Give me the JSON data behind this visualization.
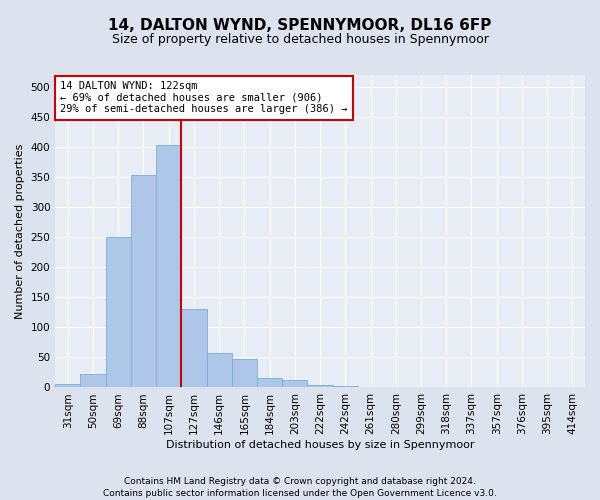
{
  "title": "14, DALTON WYND, SPENNYMOOR, DL16 6FP",
  "subtitle": "Size of property relative to detached houses in Spennymoor",
  "xlabel": "Distribution of detached houses by size in Spennymoor",
  "ylabel": "Number of detached properties",
  "footnote1": "Contains HM Land Registry data © Crown copyright and database right 2024.",
  "footnote2": "Contains public sector information licensed under the Open Government Licence v3.0.",
  "bin_labels": [
    "31sqm",
    "50sqm",
    "69sqm",
    "88sqm",
    "107sqm",
    "127sqm",
    "146sqm",
    "165sqm",
    "184sqm",
    "203sqm",
    "222sqm",
    "242sqm",
    "261sqm",
    "280sqm",
    "299sqm",
    "318sqm",
    "337sqm",
    "357sqm",
    "376sqm",
    "395sqm",
    "414sqm"
  ],
  "bar_heights": [
    5,
    22,
    250,
    353,
    403,
    130,
    57,
    48,
    16,
    12,
    4,
    2,
    1,
    1,
    1,
    1,
    1,
    1,
    0,
    0,
    1
  ],
  "bar_color": "#aec6e8",
  "bar_edge_color": "#7aafd4",
  "vline_bin_index": 5,
  "vline_color": "#cc0000",
  "annotation_text": "14 DALTON WYND: 122sqm\n← 69% of detached houses are smaller (906)\n29% of semi-detached houses are larger (386) →",
  "annotation_box_facecolor": "#ffffff",
  "annotation_border_color": "#cc0000",
  "ylim": [
    0,
    520
  ],
  "yticks": [
    0,
    50,
    100,
    150,
    200,
    250,
    300,
    350,
    400,
    450,
    500
  ],
  "bg_color": "#dde3ee",
  "plot_bg_color": "#e8edf5",
  "grid_color": "#ffffff",
  "title_fontsize": 11,
  "subtitle_fontsize": 9,
  "axis_label_fontsize": 8,
  "tick_fontsize": 7.5,
  "footnote_fontsize": 6.5
}
